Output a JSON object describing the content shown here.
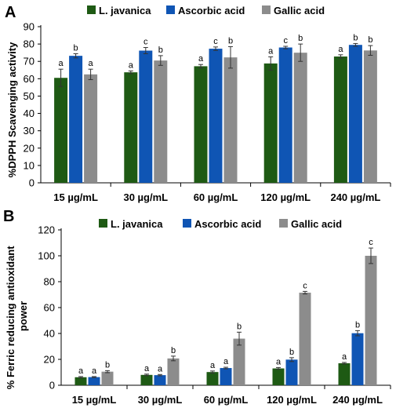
{
  "chart_data": [
    {
      "panel_label": "A",
      "type": "bar",
      "ylabel": "%DPPH Scavenging activity",
      "ylim": [
        0,
        90
      ],
      "yticks": [
        0,
        10,
        20,
        30,
        40,
        50,
        60,
        70,
        80,
        90
      ],
      "categories": [
        "15 µg/mL",
        "30 µg/mL",
        "60 µg/mL",
        "120 µg/mL",
        "240 µg/mL"
      ],
      "series": [
        {
          "name": "L. javanica",
          "color": "#1e5a14",
          "values": [
            60.5,
            63.7,
            67.2,
            68.8,
            72.8
          ],
          "errors": [
            5.0,
            0.8,
            1.0,
            3.8,
            1.0
          ],
          "letters": [
            "a",
            "a",
            "a",
            "a",
            "a"
          ]
        },
        {
          "name": "Ascorbic acid",
          "color": "#0f55b4",
          "values": [
            73.2,
            76.2,
            77.3,
            78.0,
            79.5
          ],
          "errors": [
            1.2,
            1.8,
            1.0,
            0.7,
            0.8
          ],
          "letters": [
            "b",
            "c",
            "c",
            "c",
            "b"
          ]
        },
        {
          "name": "Gallic acid",
          "color": "#8c8c8c",
          "values": [
            62.5,
            70.5,
            72.3,
            75.0,
            76.3
          ],
          "errors": [
            3.0,
            2.8,
            6.2,
            5.0,
            2.8
          ],
          "letters": [
            "a",
            "b",
            "b",
            "b",
            "b"
          ]
        }
      ],
      "grid": false,
      "legend_position": "top"
    },
    {
      "panel_label": "B",
      "type": "bar",
      "ylabel": "% Ferric reducing antioxidant power",
      "ylim": [
        0,
        120
      ],
      "yticks": [
        0,
        20,
        40,
        60,
        80,
        100,
        120
      ],
      "categories": [
        "15 µg/mL",
        "30 µg/mL",
        "60 µg/mL",
        "120 µg/mL",
        "240 µg/mL"
      ],
      "series": [
        {
          "name": "L. javanica",
          "color": "#1e5a14",
          "values": [
            6.2,
            8.0,
            10.2,
            13.0,
            17.0
          ],
          "errors": [
            0.5,
            0.6,
            0.8,
            0.7,
            0.6
          ],
          "letters": [
            "a",
            "a",
            "a",
            "a",
            "a"
          ]
        },
        {
          "name": "Ascorbic acid",
          "color": "#0f55b4",
          "values": [
            6.3,
            7.8,
            13.3,
            19.8,
            40.2
          ],
          "errors": [
            0.4,
            0.5,
            0.6,
            1.5,
            2.0
          ],
          "letters": [
            "a",
            "a",
            "a",
            "b",
            "b"
          ]
        },
        {
          "name": "Gallic acid",
          "color": "#8c8c8c",
          "values": [
            10.5,
            20.7,
            36.0,
            71.5,
            100.0
          ],
          "errors": [
            0.8,
            1.8,
            5.0,
            1.0,
            6.0
          ],
          "letters": [
            "b",
            "b",
            "b",
            "c",
            "c"
          ]
        }
      ],
      "grid": false,
      "legend_position": "top"
    }
  ]
}
